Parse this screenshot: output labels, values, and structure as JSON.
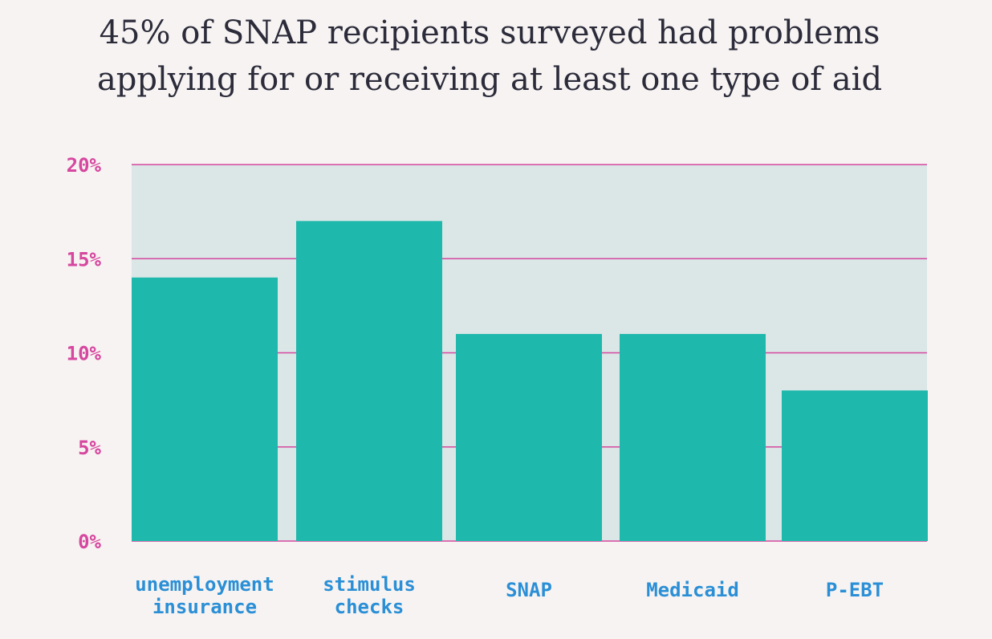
{
  "title": {
    "line1": "45% of SNAP recipients surveyed had problems",
    "line2": "applying for or receiving at least one type of aid"
  },
  "colors": {
    "background": "#f7f3f2",
    "plot_background": "#dae7e6",
    "bar": "#1fb8ac",
    "gridline": "#d6479f",
    "y_tick_text": "#d6479f",
    "x_tick_text": "#2a8fd6",
    "title_text": "#2b2b3a"
  },
  "chart_data": {
    "type": "bar",
    "title": "45% of SNAP recipients surveyed had problems applying for or receiving at least one type of aid",
    "categories": [
      [
        "unemployment",
        "insurance"
      ],
      [
        "stimulus",
        "checks"
      ],
      [
        "SNAP"
      ],
      [
        "Medicaid"
      ],
      [
        "P-EBT"
      ]
    ],
    "values": [
      14,
      17,
      11,
      11,
      8
    ],
    "unit": "%",
    "ylim": [
      0,
      20
    ],
    "yticks": [
      0,
      5,
      10,
      15,
      20
    ],
    "ytick_labels": [
      "0%",
      "5%",
      "10%",
      "15%",
      "20%"
    ],
    "grid": true,
    "legend": "none",
    "xlabel": "",
    "ylabel": ""
  }
}
